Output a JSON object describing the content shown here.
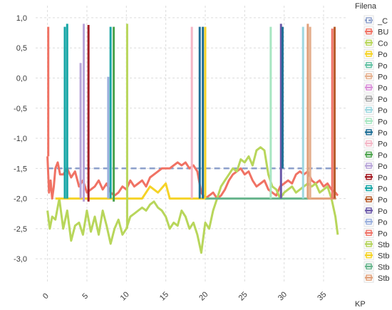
{
  "chart_data": {
    "type": "line",
    "xlabel": "KP",
    "ylabel": "",
    "xlim": [
      -1.5,
      37.8
    ],
    "ylim": [
      -3.4,
      1.2
    ],
    "x_ticks": [
      0,
      5,
      10,
      15,
      20,
      25,
      30,
      35
    ],
    "x_tick_labels": [
      "0",
      "5",
      "10",
      "15",
      "20",
      "25",
      "30",
      "35"
    ],
    "y_ticks": [
      1.0,
      0.5,
      0.0,
      -0.5,
      -1.0,
      -1.5,
      -2.0,
      -2.5,
      -3.0
    ],
    "y_tick_labels": [
      "1,0",
      "0,5",
      "0,0",
      "-0,5",
      "-1,0",
      "-1,5",
      "-2,0",
      "-2,5",
      "-3,0"
    ],
    "grid": true,
    "legend_title": "Filena",
    "legend_position": "right",
    "legend": [
      {
        "label": "_C",
        "color": "#8da0cb",
        "dash": true
      },
      {
        "label": "BU",
        "color": "#f07264"
      },
      {
        "label": "Co",
        "color": "#b8d65b"
      },
      {
        "label": "Po",
        "color": "#f5d327"
      },
      {
        "label": "Po",
        "color": "#66c2a5"
      },
      {
        "label": "Po",
        "color": "#e5b08f"
      },
      {
        "label": "Po",
        "color": "#d98fd9"
      },
      {
        "label": "Po",
        "color": "#a6a6a6"
      },
      {
        "label": "Po",
        "color": "#9ed8e0"
      },
      {
        "label": "Po",
        "color": "#a8e6c2"
      },
      {
        "label": "Po",
        "color": "#1f6e96"
      },
      {
        "label": "Po",
        "color": "#f4b6c6"
      },
      {
        "label": "Po",
        "color": "#4da34d"
      },
      {
        "label": "Po",
        "color": "#b8a5d9"
      },
      {
        "label": "Po",
        "color": "#a31c24"
      },
      {
        "label": "Po",
        "color": "#17a6a6"
      },
      {
        "label": "Po",
        "color": "#b85e2e"
      },
      {
        "label": "Po",
        "color": "#6a58a8"
      },
      {
        "label": "Po",
        "color": "#9bb0dd"
      },
      {
        "label": "Po",
        "color": "#f0766b"
      },
      {
        "label": "Stb",
        "color": "#b5d45e"
      },
      {
        "label": "Stb",
        "color": "#f5d327"
      },
      {
        "label": "Stb",
        "color": "#66b48c"
      },
      {
        "label": "Stb",
        "color": "#e0a07a"
      }
    ],
    "series": [
      {
        "name": "_C",
        "style": "dashed",
        "color": "#8da0cb",
        "x": [
          0,
          36.8
        ],
        "y": [
          -1.5,
          -1.5
        ]
      },
      {
        "name": "BU",
        "color": "#f07264",
        "x": [
          0.0,
          0.2,
          0.4,
          0.6,
          0.8,
          1.0,
          1.3,
          1.6,
          2.0,
          2.5,
          3.0,
          3.5,
          4.0,
          4.5,
          5.0,
          5.5,
          6.0,
          6.5,
          7.0,
          7.5,
          8.0,
          8.5,
          9.0,
          9.5,
          10.0,
          10.5,
          11.0,
          11.5,
          12.0,
          12.5,
          13.0,
          13.5,
          14.0,
          14.5,
          15.0,
          15.5,
          16.0,
          16.5,
          17.0,
          17.5,
          18.0,
          18.5,
          19.0,
          19.5,
          20.0,
          20.5,
          21.0,
          21.5,
          22.0,
          22.5,
          23.0,
          23.5,
          24.0,
          24.5,
          25.0,
          25.5,
          26.0,
          26.5,
          27.0,
          27.5,
          28.0,
          28.5,
          29.0,
          29.5,
          30.0,
          30.5,
          31.0,
          31.5,
          32.0,
          32.5,
          33.0,
          33.5,
          34.0,
          34.5,
          35.0,
          35.5,
          36.0,
          36.5,
          36.8
        ],
        "y": [
          -1.3,
          -1.9,
          -1.7,
          -2.0,
          -1.8,
          -1.5,
          -1.4,
          -1.6,
          -1.6,
          -1.5,
          -1.65,
          -1.55,
          -1.8,
          -1.7,
          -1.9,
          -1.85,
          -1.8,
          -1.7,
          -1.85,
          -1.75,
          -1.9,
          -1.95,
          -1.9,
          -1.8,
          -1.85,
          -1.7,
          -1.8,
          -1.75,
          -1.7,
          -1.8,
          -1.65,
          -1.6,
          -1.55,
          -1.5,
          -1.5,
          -1.5,
          -1.45,
          -1.4,
          -1.45,
          -1.4,
          -1.5,
          -1.45,
          -1.55,
          -1.9,
          -2.0,
          -1.95,
          -1.9,
          -2.0,
          -1.95,
          -1.85,
          -1.7,
          -1.6,
          -1.55,
          -1.5,
          -1.6,
          -1.55,
          -1.7,
          -1.8,
          -1.75,
          -1.7,
          -1.85,
          -1.9,
          -1.95,
          -1.8,
          -1.75,
          -1.7,
          -1.75,
          -1.6,
          -1.55,
          -1.6,
          -1.55,
          -1.7,
          -1.75,
          -1.7,
          -1.8,
          -1.75,
          -1.85,
          -1.9,
          -1.95
        ]
      },
      {
        "name": "Co",
        "color": "#b8d65b",
        "x": [
          0.0,
          0.3,
          0.6,
          1.0,
          1.5,
          2.0,
          2.5,
          3.0,
          3.5,
          4.0,
          4.5,
          5.0,
          5.5,
          6.0,
          6.5,
          7.0,
          7.5,
          8.0,
          8.5,
          9.0,
          9.5,
          10.0,
          10.5,
          11.0,
          11.5,
          12.0,
          12.5,
          13.0,
          13.5,
          14.0,
          14.5,
          15.0,
          15.5,
          16.0,
          16.5,
          17.0,
          17.5,
          18.0,
          18.5,
          19.0,
          19.5,
          20.0,
          20.5,
          21.0,
          21.5,
          22.0,
          22.5,
          23.0,
          23.5,
          24.0,
          24.5,
          25.0,
          25.5,
          26.0,
          26.5,
          27.0,
          27.5,
          28.0,
          28.5,
          29.0,
          29.5,
          30.0,
          30.5,
          31.0,
          31.5,
          32.0,
          32.5,
          33.0,
          33.5,
          34.0,
          34.5,
          35.0,
          35.5,
          36.0,
          36.5,
          36.8
        ],
        "y": [
          -2.2,
          -2.5,
          -2.3,
          -2.35,
          -2.0,
          -2.5,
          -2.2,
          -2.7,
          -2.45,
          -2.4,
          -2.6,
          -2.2,
          -2.55,
          -2.3,
          -2.6,
          -2.2,
          -2.45,
          -2.75,
          -2.5,
          -2.35,
          -2.6,
          -2.5,
          -2.3,
          -2.25,
          -2.2,
          -2.15,
          -2.2,
          -2.1,
          -2.05,
          -2.15,
          -2.2,
          -2.3,
          -2.5,
          -2.4,
          -2.45,
          -2.2,
          -2.3,
          -2.5,
          -2.4,
          -2.6,
          -2.9,
          -2.4,
          -2.5,
          -2.2,
          -2.0,
          -1.8,
          -1.7,
          -1.6,
          -1.5,
          -1.55,
          -1.35,
          -1.4,
          -1.3,
          -1.45,
          -1.2,
          -1.15,
          -1.2,
          -1.6,
          -1.8,
          -1.85,
          -2.0,
          -1.9,
          -1.85,
          -1.8,
          -1.9,
          -1.85,
          -1.8,
          -1.75,
          -1.8,
          -1.75,
          -1.9,
          -1.85,
          -1.8,
          -2.0,
          -2.3,
          -2.6
        ]
      },
      {
        "name": "Po",
        "color": "#f5d327",
        "x": [
          1.0,
          5.0,
          10.0,
          12.0,
          13.0,
          14.0,
          15.0,
          15.5,
          16.0,
          19.0,
          20.0,
          20.5
        ],
        "y": [
          -2.0,
          -2.0,
          -2.0,
          -2.0,
          -1.8,
          -1.9,
          -1.75,
          -2.0,
          -2.0,
          -2.0,
          -2.0,
          -2.0
        ]
      },
      {
        "name": "Po",
        "color": "#66b48c",
        "x": [
          20.0,
          33.0
        ],
        "y": [
          -2.0,
          -2.0
        ]
      },
      {
        "name": "Po",
        "color": "#e0a07a",
        "x": [
          33.0,
          36.6
        ],
        "y": [
          -2.0,
          -2.0
        ]
      }
    ],
    "spikes": [
      {
        "x": 0.1,
        "color": "#f07264",
        "top": 0.85,
        "bottom": -1.3
      },
      {
        "x": 2.2,
        "color": "#17a6a6",
        "top": 0.85,
        "bottom": -2.0
      },
      {
        "x": 2.5,
        "color": "#17a6a6",
        "top": 0.9,
        "bottom": -2.0
      },
      {
        "x": 4.2,
        "color": "#b8a5d9",
        "top": 0.25,
        "bottom": -2.0
      },
      {
        "x": 4.6,
        "color": "#b8a5d9",
        "top": 0.9,
        "bottom": -2.05
      },
      {
        "x": 5.2,
        "color": "#a31c24",
        "top": 0.88,
        "bottom": -2.05
      },
      {
        "x": 7.7,
        "color": "#9bb0dd",
        "top": 0.02,
        "bottom": -2.0
      },
      {
        "x": 8.0,
        "color": "#17a6a6",
        "top": 0.85,
        "bottom": -2.0
      },
      {
        "x": 8.4,
        "color": "#4da34d",
        "top": 0.85,
        "bottom": -2.05
      },
      {
        "x": 10.1,
        "color": "#b8d65b",
        "top": 0.9,
        "bottom": -2.5
      },
      {
        "x": 18.3,
        "color": "#f4b6c6",
        "top": 0.85,
        "bottom": -2.0
      },
      {
        "x": 19.3,
        "color": "#1f6e96",
        "top": 0.85,
        "bottom": -2.0
      },
      {
        "x": 19.7,
        "color": "#1f6e96",
        "top": 0.85,
        "bottom": -2.0
      },
      {
        "x": 20.0,
        "color": "#f5d327",
        "top": 0.85,
        "bottom": -2.0
      },
      {
        "x": 28.3,
        "color": "#a8e6c2",
        "top": 0.85,
        "bottom": -2.0
      },
      {
        "x": 29.6,
        "color": "#6a58a8",
        "top": 0.9,
        "bottom": -2.0
      },
      {
        "x": 29.8,
        "color": "#1f6e96",
        "top": 0.85,
        "bottom": -1.5
      },
      {
        "x": 32.4,
        "color": "#9ed8e0",
        "top": 0.85,
        "bottom": -2.0
      },
      {
        "x": 33.0,
        "color": "#e0a07a",
        "top": 0.9,
        "bottom": -2.0
      },
      {
        "x": 33.3,
        "color": "#e5b08f",
        "top": 0.85,
        "bottom": -2.0
      },
      {
        "x": 36.1,
        "color": "#f07264",
        "top": 0.82,
        "bottom": -2.0
      },
      {
        "x": 36.4,
        "color": "#b85e2e",
        "top": 0.85,
        "bottom": -2.0
      }
    ]
  }
}
